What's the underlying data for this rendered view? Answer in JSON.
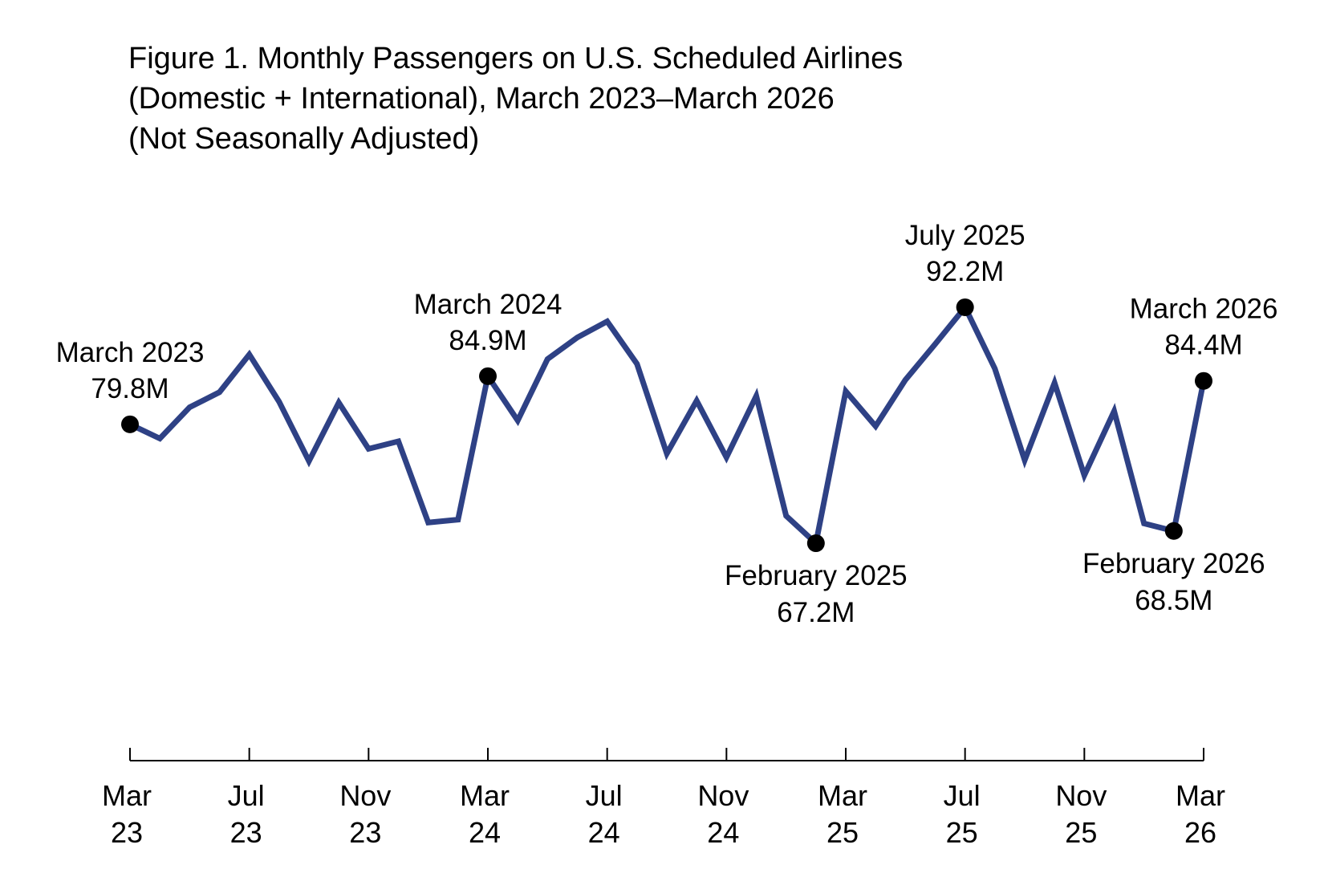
{
  "title_lines": [
    "Figure 1. Monthly Passengers on U.S. Scheduled Airlines",
    "(Domestic + International), March 2023–March 2026",
    "(Not Seasonally Adjusted)"
  ],
  "chart_data": {
    "type": "line",
    "title": "Figure 1. Monthly Passengers on U.S. Scheduled Airlines (Domestic + International), March 2023–March 2026 (Not Seasonally Adjusted)",
    "xlabel": "",
    "ylabel": "",
    "x": [
      "2023-03",
      "2023-04",
      "2023-05",
      "2023-06",
      "2023-07",
      "2023-08",
      "2023-09",
      "2023-10",
      "2023-11",
      "2023-12",
      "2024-01",
      "2024-02",
      "2024-03",
      "2024-04",
      "2024-05",
      "2024-06",
      "2024-07",
      "2024-08",
      "2024-09",
      "2024-10",
      "2024-11",
      "2024-12",
      "2025-01",
      "2025-02",
      "2025-03",
      "2025-04",
      "2025-05",
      "2025-06",
      "2025-07",
      "2025-08",
      "2025-09",
      "2025-10",
      "2025-11",
      "2025-12",
      "2026-01",
      "2026-02",
      "2026-03"
    ],
    "series": [
      {
        "values": [
          79.8,
          78.3,
          81.6,
          83.2,
          87.2,
          82.2,
          75.9,
          82.1,
          77.2,
          78.0,
          69.4,
          69.7,
          84.9,
          80.2,
          86.7,
          89.0,
          90.7,
          86.2,
          76.7,
          82.3,
          76.3,
          82.8,
          70.1,
          67.2,
          83.3,
          79.6,
          84.5,
          88.3,
          92.2,
          85.7,
          76.0,
          84.2,
          74.4,
          81.2,
          69.3,
          68.5,
          84.4
        ],
        "color": "#2e4185"
      }
    ],
    "ylim": [
      44,
      112
    ],
    "grid": false,
    "legend": "none",
    "x_ticks": [
      {
        "month": "Mar",
        "year": "23",
        "x": "2023-03"
      },
      {
        "month": "Jul",
        "year": "23",
        "x": "2023-07"
      },
      {
        "month": "Nov",
        "year": "23",
        "x": "2023-11"
      },
      {
        "month": "Mar",
        "year": "24",
        "x": "2024-03"
      },
      {
        "month": "Jul",
        "year": "24",
        "x": "2024-07"
      },
      {
        "month": "Nov",
        "year": "24",
        "x": "2024-11"
      },
      {
        "month": "Mar",
        "year": "25",
        "x": "2025-03"
      },
      {
        "month": "Jul",
        "year": "25",
        "x": "2025-07"
      },
      {
        "month": "Nov",
        "year": "25",
        "x": "2025-11"
      },
      {
        "month": "Mar",
        "year": "26",
        "x": "2026-03"
      }
    ],
    "annotations": [
      {
        "x": "2023-03",
        "label": "March 2023",
        "value_label": "79.8M",
        "position": "above"
      },
      {
        "x": "2024-03",
        "label": "March 2024",
        "value_label": "84.9M",
        "position": "above"
      },
      {
        "x": "2025-02",
        "label": "February 2025",
        "value_label": "67.2M",
        "position": "below"
      },
      {
        "x": "2025-07",
        "label": "July 2025",
        "value_label": "92.2M",
        "position": "above"
      },
      {
        "x": "2026-02",
        "label": "February 2026",
        "value_label": "68.5M",
        "position": "below"
      },
      {
        "x": "2026-03",
        "label": "March 2026",
        "value_label": "84.4M",
        "position": "above"
      }
    ]
  }
}
